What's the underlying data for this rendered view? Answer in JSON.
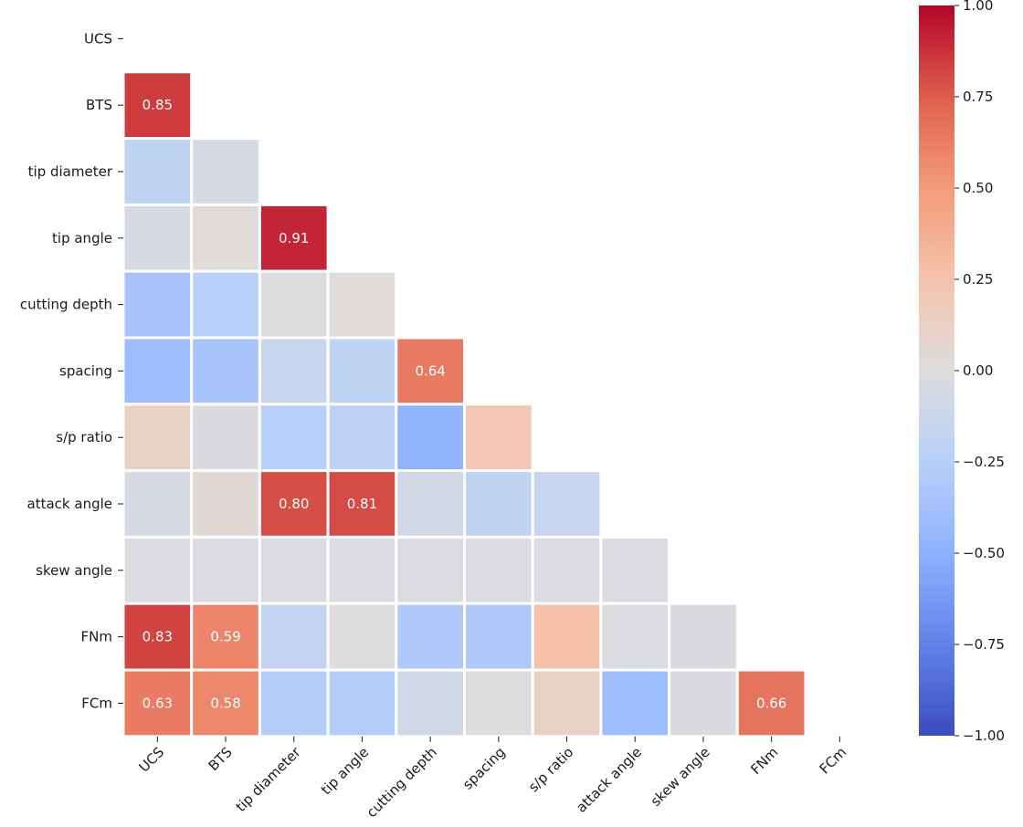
{
  "chart_data": {
    "type": "heatmap",
    "title": "",
    "variables": [
      "UCS",
      "BTS",
      "tip diameter",
      "tip angle",
      "cutting depth",
      "spacing",
      "s/p ratio",
      "attack angle",
      "skew angle",
      "FNm",
      "FCm"
    ],
    "matrix": [
      [
        null,
        null,
        null,
        null,
        null,
        null,
        null,
        null,
        null,
        null,
        null
      ],
      [
        0.85,
        null,
        null,
        null,
        null,
        null,
        null,
        null,
        null,
        null,
        null
      ],
      [
        -0.2,
        -0.05,
        null,
        null,
        null,
        null,
        null,
        null,
        null,
        null,
        null
      ],
      [
        -0.05,
        0.02,
        0.91,
        null,
        null,
        null,
        null,
        null,
        null,
        null,
        null
      ],
      [
        -0.35,
        -0.25,
        -0.01,
        0.02,
        null,
        null,
        null,
        null,
        null,
        null,
        null
      ],
      [
        -0.4,
        -0.35,
        -0.15,
        -0.2,
        0.64,
        null,
        null,
        null,
        null,
        null,
        null
      ],
      [
        0.12,
        -0.03,
        -0.25,
        -0.22,
        -0.48,
        0.22,
        null,
        null,
        null,
        null,
        null
      ],
      [
        -0.05,
        0.04,
        0.8,
        0.81,
        -0.08,
        -0.2,
        -0.15,
        null,
        null,
        null,
        null
      ],
      [
        -0.02,
        -0.02,
        -0.02,
        -0.02,
        -0.02,
        -0.02,
        -0.02,
        -0.02,
        null,
        null,
        null
      ],
      [
        0.83,
        0.59,
        -0.18,
        0.0,
        -0.3,
        -0.3,
        0.27,
        -0.02,
        -0.03,
        null,
        null
      ],
      [
        0.63,
        0.58,
        -0.27,
        -0.28,
        -0.09,
        -0.01,
        0.12,
        -0.4,
        -0.03,
        0.66,
        null
      ]
    ],
    "annotation_threshold": 0.5,
    "colorbar": {
      "vmin": -1.0,
      "vmax": 1.0,
      "ticks": [
        "−1.00",
        "−0.75",
        "−0.50",
        "−0.25",
        "0.00",
        "0.25",
        "0.50",
        "0.75",
        "1.00"
      ],
      "tick_values": [
        -1.0,
        -0.75,
        -0.5,
        -0.25,
        0.0,
        0.25,
        0.5,
        0.75,
        1.0
      ],
      "colormap": "coolwarm"
    },
    "colors": {
      "low": "#3b4cc0",
      "mid": "#dddddd",
      "high": "#b40426",
      "grid_line": "#ffffff",
      "text_on_cell": "#ffffff"
    }
  }
}
